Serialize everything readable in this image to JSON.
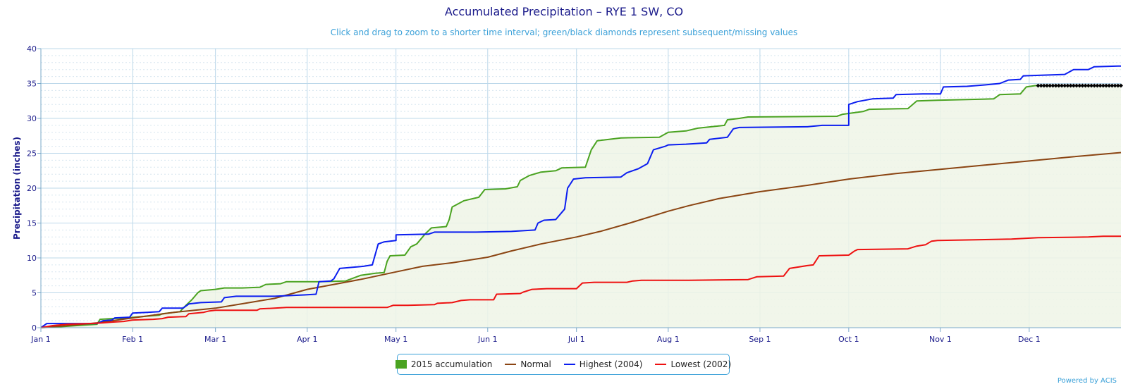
{
  "title": "Accumulated Precipitation – RYE 1 SW, CO",
  "subtitle": "Click and drag to zoom to a shorter time interval; green/black diamonds represent subsequent/missing values",
  "credit": "Powered by ACIS",
  "colors": {
    "accumulation": "#4aa321",
    "normal": "#8b4513",
    "highest": "#0b1ef0",
    "lowest": "#ee1111",
    "missing": "#000000",
    "fill": "#eef5e6",
    "grid": "#bcd8ea",
    "axis_text": "#1a1a8a"
  },
  "chart_data": {
    "type": "line",
    "title": "Accumulated Precipitation – RYE 1 SW, CO",
    "subtitle": "Click and drag to zoom to a shorter time interval; green/black diamonds represent subsequent/missing values",
    "xlabel": "",
    "ylabel": "Precipitation (inches)",
    "ylim": [
      0,
      40
    ],
    "yticks": [
      "0",
      "5",
      "10",
      "15",
      "20",
      "25",
      "30",
      "35",
      "40"
    ],
    "xlim_day_of_year": [
      1,
      366
    ],
    "xticks": [
      {
        "label": "Jan 1",
        "day": 1
      },
      {
        "label": "Feb 1",
        "day": 32
      },
      {
        "label": "Mar 1",
        "day": 60
      },
      {
        "label": "Apr 1",
        "day": 91
      },
      {
        "label": "May 1",
        "day": 121
      },
      {
        "label": "Jun 1",
        "day": 152
      },
      {
        "label": "Jul 1",
        "day": 182
      },
      {
        "label": "Aug 1",
        "day": 213
      },
      {
        "label": "Sep 1",
        "day": 244
      },
      {
        "label": "Oct 1",
        "day": 274
      },
      {
        "label": "Nov 1",
        "day": 305
      },
      {
        "label": "Dec 1",
        "day": 335
      }
    ],
    "grid": true,
    "legend_position": "bottom-center",
    "series": [
      {
        "name": "2015 accumulation",
        "key": "accumulation",
        "filled": true,
        "points": [
          [
            1,
            0
          ],
          [
            6,
            0.1
          ],
          [
            20,
            0.5
          ],
          [
            21,
            1.2
          ],
          [
            25,
            1.3
          ],
          [
            30,
            1.4
          ],
          [
            35,
            1.6
          ],
          [
            41,
            1.8
          ],
          [
            42,
            2.0
          ],
          [
            48,
            2.3
          ],
          [
            50,
            3.2
          ],
          [
            52,
            4.0
          ],
          [
            54,
            5.0
          ],
          [
            55,
            5.3
          ],
          [
            60,
            5.5
          ],
          [
            63,
            5.7
          ],
          [
            69,
            5.7
          ],
          [
            75,
            5.8
          ],
          [
            77,
            6.2
          ],
          [
            82,
            6.3
          ],
          [
            84,
            6.6
          ],
          [
            90,
            6.6
          ],
          [
            95,
            6.6
          ],
          [
            104,
            6.7
          ],
          [
            109,
            7.5
          ],
          [
            114,
            7.8
          ],
          [
            117,
            7.9
          ],
          [
            118,
            9.5
          ],
          [
            119,
            10.3
          ],
          [
            124,
            10.4
          ],
          [
            126,
            11.6
          ],
          [
            128,
            12.0
          ],
          [
            130,
            13.0
          ],
          [
            131,
            13.5
          ],
          [
            133,
            14.3
          ],
          [
            138,
            14.5
          ],
          [
            139,
            15.5
          ],
          [
            140,
            17.3
          ],
          [
            144,
            18.2
          ],
          [
            149,
            18.7
          ],
          [
            151,
            19.8
          ],
          [
            158,
            19.9
          ],
          [
            162,
            20.2
          ],
          [
            163,
            21.1
          ],
          [
            166,
            21.8
          ],
          [
            170,
            22.3
          ],
          [
            175,
            22.5
          ],
          [
            177,
            22.9
          ],
          [
            185,
            23.0
          ],
          [
            187,
            25.5
          ],
          [
            189,
            26.8
          ],
          [
            193,
            27.0
          ],
          [
            197,
            27.2
          ],
          [
            210,
            27.3
          ],
          [
            213,
            28.0
          ],
          [
            219,
            28.2
          ],
          [
            223,
            28.6
          ],
          [
            232,
            29.0
          ],
          [
            233,
            29.8
          ],
          [
            237,
            30.0
          ],
          [
            240,
            30.2
          ],
          [
            270,
            30.3
          ],
          [
            272,
            30.6
          ],
          [
            279,
            31.0
          ],
          [
            281,
            31.3
          ],
          [
            294,
            31.4
          ],
          [
            297,
            32.5
          ],
          [
            304,
            32.6
          ],
          [
            323,
            32.8
          ],
          [
            325,
            33.4
          ],
          [
            332,
            33.5
          ],
          [
            334,
            34.5
          ],
          [
            337,
            34.7
          ],
          [
            338,
            34.7
          ]
        ],
        "missing_from_day": 338,
        "missing_value": 34.7
      },
      {
        "name": "Normal",
        "key": "normal",
        "points": [
          [
            1,
            0
          ],
          [
            10,
            0.3
          ],
          [
            20,
            0.7
          ],
          [
            32,
            1.4
          ],
          [
            46,
            2.2
          ],
          [
            60,
            2.8
          ],
          [
            70,
            3.5
          ],
          [
            80,
            4.2
          ],
          [
            91,
            5.5
          ],
          [
            100,
            6.2
          ],
          [
            110,
            7.0
          ],
          [
            121,
            8.0
          ],
          [
            130,
            8.8
          ],
          [
            140,
            9.3
          ],
          [
            152,
            10.1
          ],
          [
            160,
            11.0
          ],
          [
            170,
            12.0
          ],
          [
            182,
            13.0
          ],
          [
            190,
            13.8
          ],
          [
            200,
            15.0
          ],
          [
            213,
            16.7
          ],
          [
            220,
            17.5
          ],
          [
            230,
            18.5
          ],
          [
            244,
            19.5
          ],
          [
            260,
            20.4
          ],
          [
            274,
            21.3
          ],
          [
            290,
            22.1
          ],
          [
            305,
            22.7
          ],
          [
            320,
            23.3
          ],
          [
            335,
            23.9
          ],
          [
            350,
            24.5
          ],
          [
            366,
            25.1
          ]
        ]
      },
      {
        "name": "Highest (2004)",
        "key": "highest",
        "points": [
          [
            1,
            0
          ],
          [
            3,
            0.6
          ],
          [
            10,
            0.6
          ],
          [
            20,
            0.6
          ],
          [
            22,
            1.0
          ],
          [
            25,
            1.1
          ],
          [
            26,
            1.4
          ],
          [
            31,
            1.5
          ],
          [
            32,
            2.1
          ],
          [
            37,
            2.2
          ],
          [
            41,
            2.3
          ],
          [
            42,
            2.8
          ],
          [
            49,
            2.8
          ],
          [
            51,
            3.4
          ],
          [
            55,
            3.6
          ],
          [
            62,
            3.7
          ],
          [
            63,
            4.3
          ],
          [
            67,
            4.5
          ],
          [
            80,
            4.5
          ],
          [
            90,
            4.7
          ],
          [
            94,
            4.8
          ],
          [
            95,
            6.6
          ],
          [
            99,
            6.7
          ],
          [
            100,
            7.0
          ],
          [
            102,
            8.5
          ],
          [
            110,
            8.8
          ],
          [
            113,
            9.0
          ],
          [
            115,
            12.0
          ],
          [
            117,
            12.3
          ],
          [
            121,
            12.5
          ],
          [
            121,
            13.3
          ],
          [
            132,
            13.4
          ],
          [
            134,
            13.7
          ],
          [
            148,
            13.7
          ],
          [
            160,
            13.8
          ],
          [
            168,
            14.0
          ],
          [
            169,
            15.0
          ],
          [
            171,
            15.4
          ],
          [
            175,
            15.5
          ],
          [
            178,
            17.0
          ],
          [
            179,
            20.0
          ],
          [
            181,
            21.3
          ],
          [
            185,
            21.5
          ],
          [
            197,
            21.6
          ],
          [
            199,
            22.2
          ],
          [
            203,
            22.8
          ],
          [
            206,
            23.5
          ],
          [
            208,
            25.5
          ],
          [
            212,
            26.0
          ],
          [
            213,
            26.2
          ],
          [
            219,
            26.3
          ],
          [
            226,
            26.5
          ],
          [
            227,
            27.0
          ],
          [
            233,
            27.3
          ],
          [
            235,
            28.5
          ],
          [
            237,
            28.7
          ],
          [
            260,
            28.8
          ],
          [
            265,
            29.0
          ],
          [
            273,
            29.0
          ],
          [
            274,
            29.0
          ],
          [
            274,
            32.0
          ],
          [
            277,
            32.4
          ],
          [
            282,
            32.8
          ],
          [
            289,
            32.9
          ],
          [
            290,
            33.4
          ],
          [
            299,
            33.5
          ],
          [
            305,
            33.5
          ],
          [
            306,
            34.5
          ],
          [
            314,
            34.6
          ],
          [
            320,
            34.8
          ],
          [
            325,
            35.0
          ],
          [
            328,
            35.5
          ],
          [
            332,
            35.6
          ],
          [
            333,
            36.1
          ],
          [
            347,
            36.3
          ],
          [
            350,
            37.0
          ],
          [
            355,
            37.0
          ],
          [
            357,
            37.4
          ],
          [
            365,
            37.5
          ],
          [
            366,
            37.5
          ]
        ]
      },
      {
        "name": "Lowest (2002)",
        "key": "lowest",
        "points": [
          [
            1,
            0
          ],
          [
            5,
            0.3
          ],
          [
            10,
            0.5
          ],
          [
            18,
            0.6
          ],
          [
            22,
            0.7
          ],
          [
            25,
            0.8
          ],
          [
            29,
            0.9
          ],
          [
            32,
            1.1
          ],
          [
            39,
            1.2
          ],
          [
            42,
            1.3
          ],
          [
            44,
            1.5
          ],
          [
            50,
            1.6
          ],
          [
            51,
            2.0
          ],
          [
            56,
            2.2
          ],
          [
            58,
            2.4
          ],
          [
            60,
            2.5
          ],
          [
            70,
            2.5
          ],
          [
            74,
            2.5
          ],
          [
            75,
            2.7
          ],
          [
            80,
            2.8
          ],
          [
            84,
            2.9
          ],
          [
            110,
            2.9
          ],
          [
            118,
            2.9
          ],
          [
            120,
            3.2
          ],
          [
            124,
            3.2
          ],
          [
            125,
            3.2
          ],
          [
            134,
            3.3
          ],
          [
            135,
            3.5
          ],
          [
            140,
            3.6
          ],
          [
            143,
            3.9
          ],
          [
            146,
            4.0
          ],
          [
            154,
            4.0
          ],
          [
            155,
            4.8
          ],
          [
            163,
            4.9
          ],
          [
            164,
            5.1
          ],
          [
            167,
            5.5
          ],
          [
            172,
            5.6
          ],
          [
            182,
            5.6
          ],
          [
            184,
            6.4
          ],
          [
            188,
            6.5
          ],
          [
            199,
            6.5
          ],
          [
            201,
            6.7
          ],
          [
            204,
            6.8
          ],
          [
            220,
            6.8
          ],
          [
            240,
            6.9
          ],
          [
            243,
            7.3
          ],
          [
            252,
            7.4
          ],
          [
            254,
            8.5
          ],
          [
            260,
            8.9
          ],
          [
            262,
            9.0
          ],
          [
            264,
            10.3
          ],
          [
            274,
            10.4
          ],
          [
            276,
            11.0
          ],
          [
            277,
            11.2
          ],
          [
            294,
            11.3
          ],
          [
            297,
            11.7
          ],
          [
            300,
            11.9
          ],
          [
            302,
            12.4
          ],
          [
            304,
            12.5
          ],
          [
            317,
            12.6
          ],
          [
            329,
            12.7
          ],
          [
            338,
            12.9
          ],
          [
            355,
            13.0
          ],
          [
            360,
            13.1
          ],
          [
            366,
            13.1
          ]
        ]
      }
    ]
  }
}
